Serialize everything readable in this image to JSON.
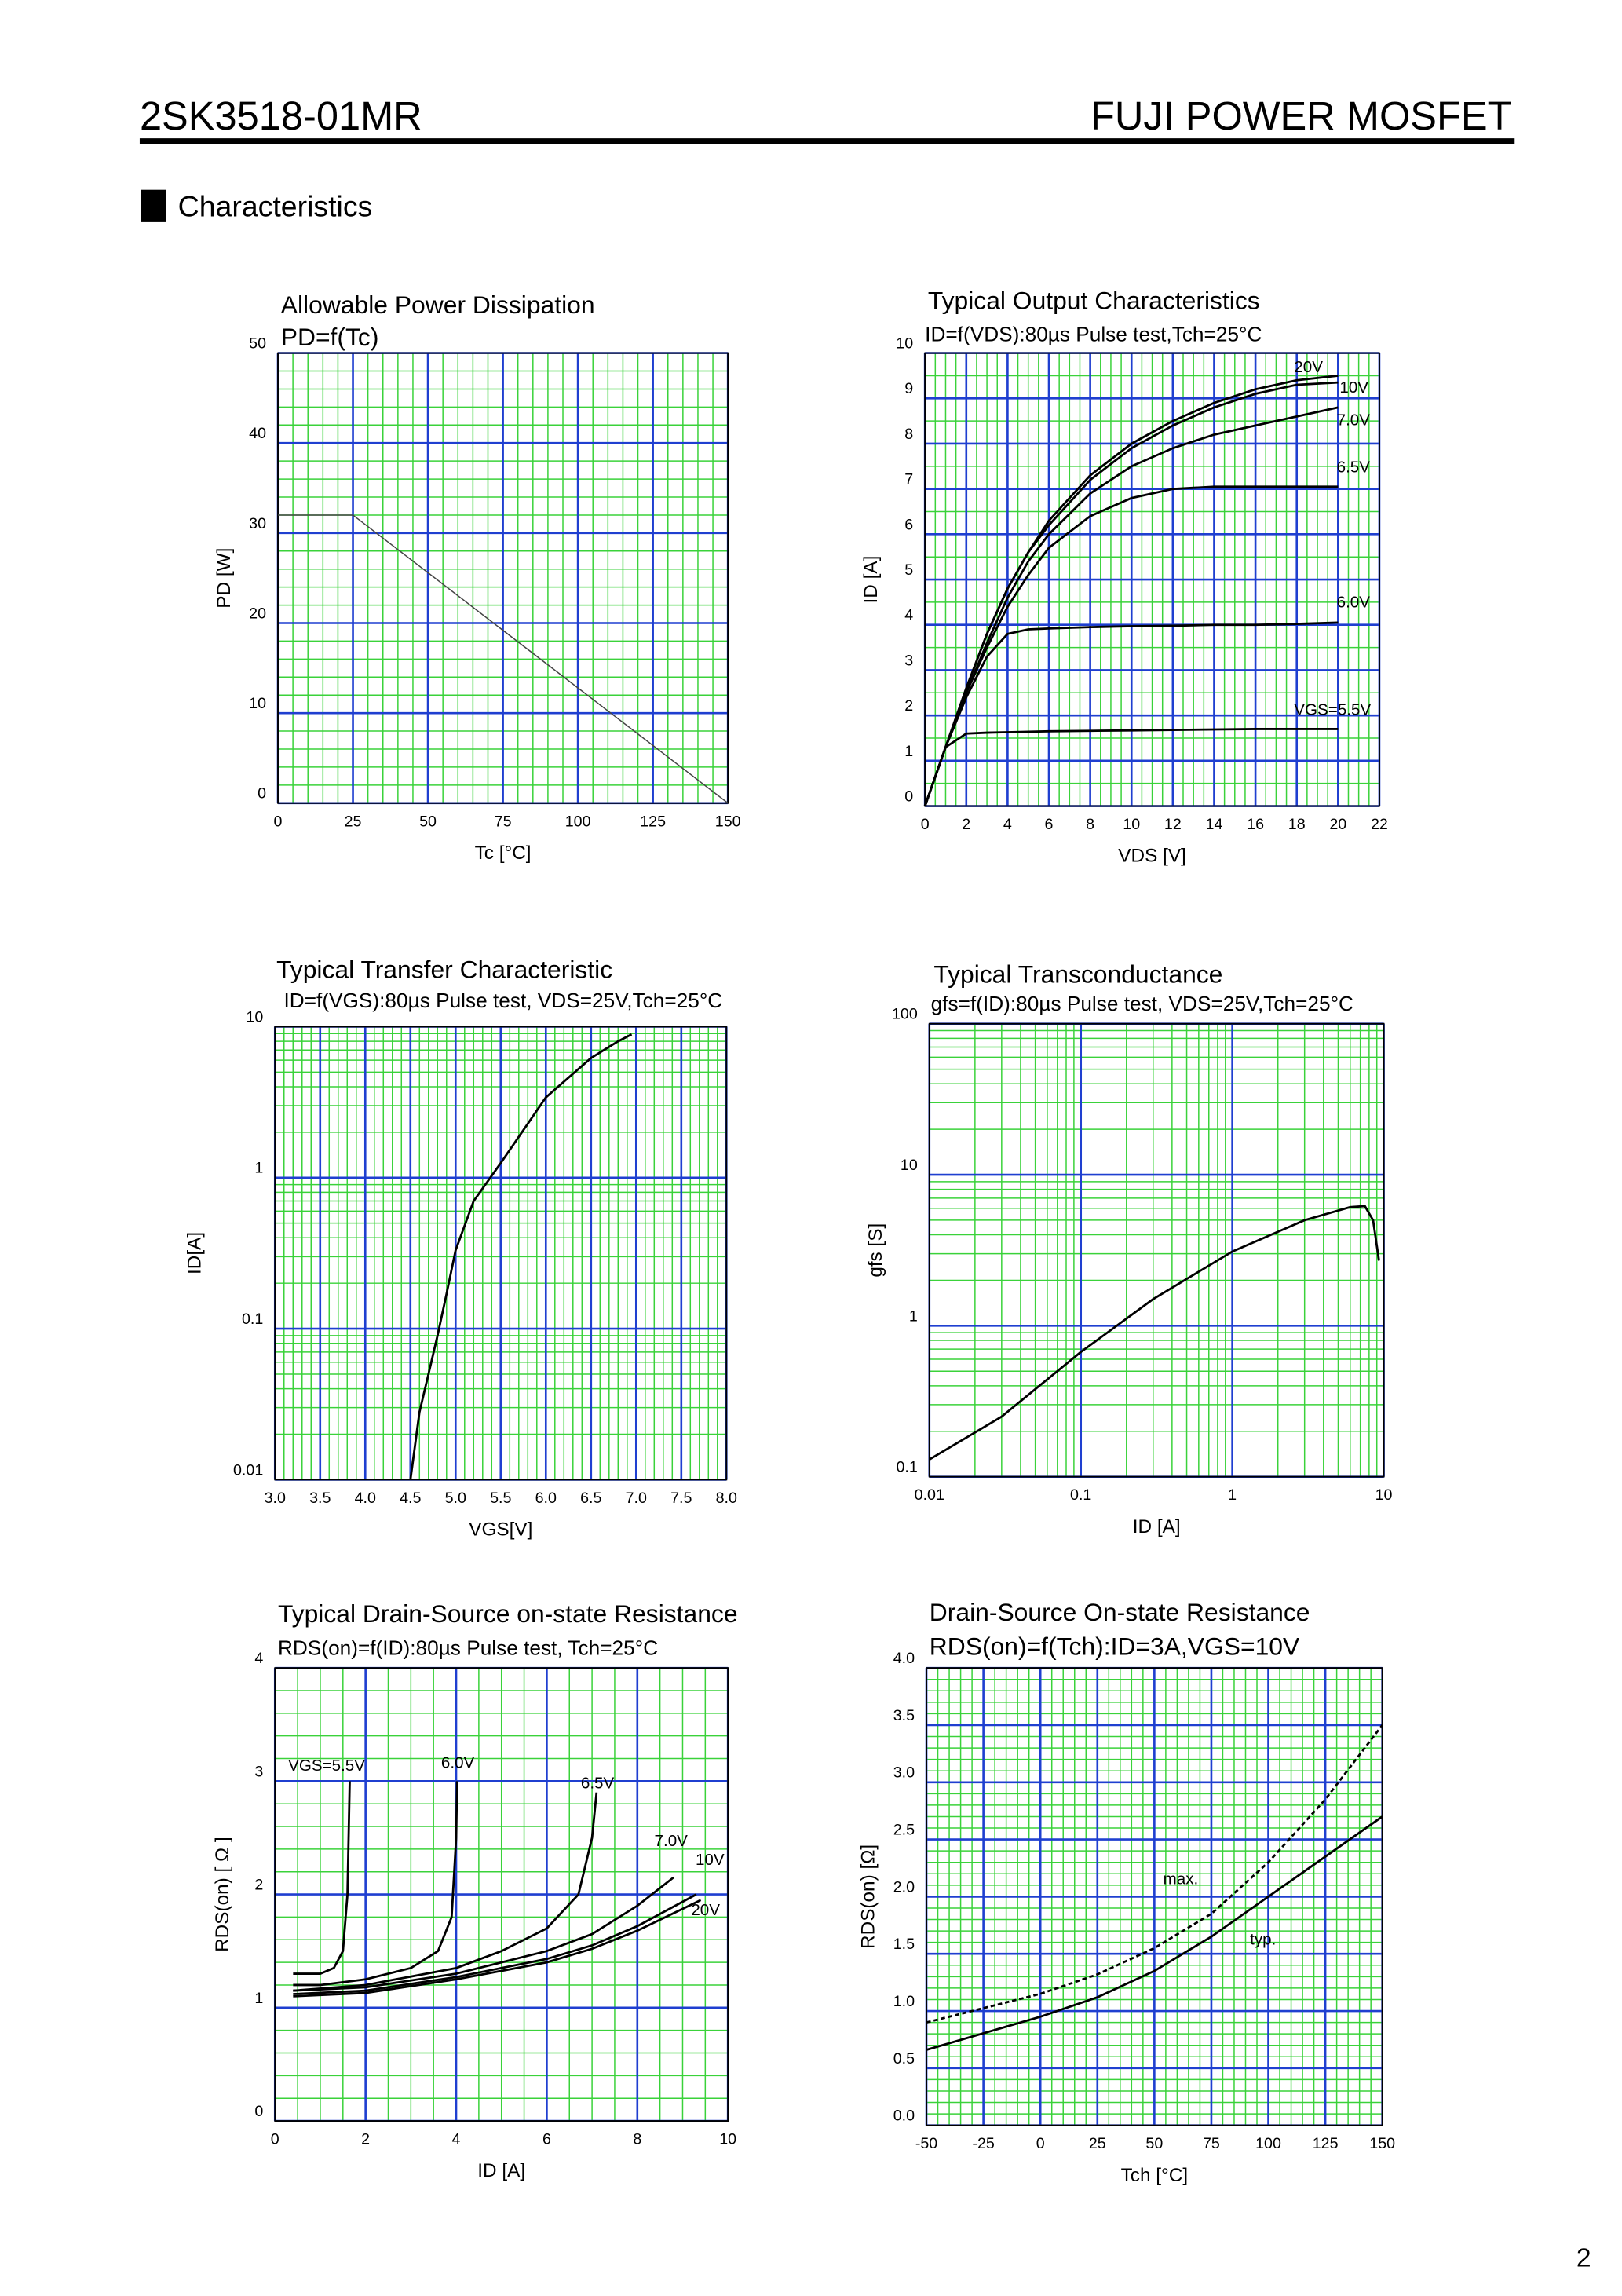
{
  "header": {
    "part_number": "2SK3518-01MR",
    "brand": "FUJI POWER MOSFET",
    "section": "Characteristics",
    "page_number": "2"
  },
  "chart_data": [
    {
      "type": "line",
      "title": "Allowable Power Dissipation",
      "subtitle": "PD=f(Tc)",
      "xlabel": "Tc [°C]",
      "ylabel": "PD [W]",
      "xlim": [
        0,
        150
      ],
      "ylim": [
        0,
        50
      ],
      "xticks": [
        0,
        25,
        50,
        75,
        100,
        125,
        150
      ],
      "yticks": [
        0,
        10,
        20,
        30,
        40,
        50
      ],
      "grid": true,
      "series": [
        {
          "color": "#444444",
          "x": [
            0,
            25,
            150
          ],
          "values": [
            32,
            32,
            0
          ]
        }
      ]
    },
    {
      "type": "line",
      "title": "Typical Output Characteristics",
      "subtitle": "ID=f(VDS):80µs Pulse test,Tch=25°C",
      "xlabel": "VDS [V]",
      "ylabel": "ID [A]",
      "xlim": [
        0,
        22
      ],
      "ylim": [
        0,
        10
      ],
      "xticks": [
        0,
        2,
        4,
        6,
        8,
        10,
        12,
        14,
        16,
        18,
        20,
        22
      ],
      "yticks": [
        0,
        1,
        2,
        3,
        4,
        5,
        6,
        7,
        8,
        9,
        10
      ],
      "grid": true,
      "x": [
        0,
        1,
        2,
        3,
        4,
        5,
        6,
        8,
        10,
        12,
        14,
        16,
        18,
        20
      ],
      "series": [
        {
          "name": "20V",
          "color": "#000000",
          "values": [
            0,
            1.3,
            2.6,
            3.8,
            4.8,
            5.6,
            6.3,
            7.3,
            8.0,
            8.5,
            8.9,
            9.2,
            9.4,
            9.5
          ]
        },
        {
          "name": "10V",
          "color": "#000000",
          "values": [
            0,
            1.3,
            2.6,
            3.8,
            4.8,
            5.6,
            6.2,
            7.2,
            7.9,
            8.4,
            8.8,
            9.1,
            9.3,
            9.35
          ]
        },
        {
          "name": "7.0V",
          "color": "#000000",
          "values": [
            0,
            1.3,
            2.5,
            3.6,
            4.6,
            5.4,
            6.0,
            6.9,
            7.5,
            7.9,
            8.2,
            8.4,
            8.6,
            8.8
          ]
        },
        {
          "name": "6.5V",
          "color": "#000000",
          "values": [
            0,
            1.3,
            2.5,
            3.5,
            4.4,
            5.1,
            5.7,
            6.4,
            6.8,
            7.0,
            7.05,
            7.05,
            7.05,
            7.05
          ]
        },
        {
          "name": "6.0V",
          "color": "#000000",
          "values": [
            0,
            1.3,
            2.4,
            3.3,
            3.8,
            3.9,
            3.92,
            3.95,
            3.97,
            3.98,
            4.0,
            4.0,
            4.02,
            4.05
          ]
        },
        {
          "name": "VGS=5.5V",
          "color": "#000000",
          "values": [
            0,
            1.3,
            1.6,
            1.62,
            1.63,
            1.64,
            1.65,
            1.66,
            1.67,
            1.68,
            1.69,
            1.7,
            1.7,
            1.7
          ]
        }
      ]
    },
    {
      "type": "line",
      "title": "Typical Transfer Characteristic",
      "subtitle": "ID=f(VGS):80µs Pulse test, VDS=25V,Tch=25°C",
      "xlabel": "VGS[V]",
      "ylabel": "ID[A]",
      "xlim": [
        3,
        8
      ],
      "ylim": [
        0.01,
        10
      ],
      "ylog": true,
      "xticks": [
        {
          "value": 3,
          "label": "3.0"
        },
        3.5,
        {
          "value": 4,
          "label": "4.0"
        },
        4.5,
        {
          "value": 5,
          "label": "5.0"
        },
        5.5,
        {
          "value": 6,
          "label": "6.0"
        },
        6.5,
        {
          "value": 7,
          "label": "7.0"
        },
        7.5,
        {
          "value": 8,
          "label": "8.0"
        }
      ],
      "yticks": [
        0.01,
        0.1,
        1,
        10
      ],
      "grid": true,
      "series": [
        {
          "color": "#000000",
          "x": [
            4.5,
            4.6,
            4.7,
            4.8,
            4.9,
            5.0,
            5.2,
            5.5,
            6.0,
            6.5,
            6.8,
            6.95
          ],
          "values": [
            0.01,
            0.028,
            0.05,
            0.09,
            0.17,
            0.33,
            0.7,
            1.25,
            3.4,
            6.2,
            8.0,
            8.9
          ]
        }
      ]
    },
    {
      "type": "line",
      "title": "Typical Transconductance",
      "subtitle": "gfs=f(ID):80µs Pulse test, VDS=25V,Tch=25°C",
      "xlabel": "ID [A]",
      "ylabel": "gfs [S]",
      "xlim": [
        0.01,
        10
      ],
      "ylim": [
        0.1,
        100
      ],
      "xlog": true,
      "ylog": true,
      "xticks": [
        0.01,
        0.1,
        1,
        10
      ],
      "yticks": [
        0.1,
        1,
        10,
        100
      ],
      "grid": true,
      "series": [
        {
          "color": "#000000",
          "x": [
            0.01,
            0.03,
            0.1,
            0.3,
            1,
            3,
            6,
            7.5,
            8.5,
            9.3
          ],
          "values": [
            0.13,
            0.25,
            0.67,
            1.5,
            3.1,
            5.0,
            6.1,
            6.2,
            5.0,
            2.7
          ]
        }
      ]
    },
    {
      "type": "line",
      "title": "Typical Drain-Source on-state Resistance",
      "subtitle": "RDS(on)=f(ID):80µs Pulse test, Tch=25°C",
      "xlabel": "ID [A]",
      "ylabel": "RDS(on) [ Ω ]",
      "xlim": [
        0,
        10
      ],
      "ylim": [
        0,
        4
      ],
      "xticks": [
        0,
        2,
        4,
        6,
        8,
        10
      ],
      "yticks": [
        0,
        1,
        2,
        3,
        4
      ],
      "grid": true,
      "series": [
        {
          "name": "VGS=5.5V",
          "color": "#000000",
          "x": [
            0.4,
            1.0,
            1.3,
            1.5,
            1.6,
            1.65
          ],
          "values": [
            1.3,
            1.3,
            1.35,
            1.5,
            2.0,
            3.0
          ]
        },
        {
          "name": "6.0V",
          "color": "#000000",
          "x": [
            0.4,
            1,
            2,
            3,
            3.6,
            3.9,
            4.0,
            4.02
          ],
          "values": [
            1.2,
            1.2,
            1.25,
            1.35,
            1.5,
            1.8,
            2.5,
            3.0
          ]
        },
        {
          "name": "6.5V",
          "color": "#000000",
          "x": [
            0.4,
            2,
            4,
            5,
            6,
            6.7,
            7.0,
            7.1
          ],
          "values": [
            1.15,
            1.2,
            1.35,
            1.5,
            1.7,
            2.0,
            2.5,
            2.9
          ]
        },
        {
          "name": "7.0V",
          "color": "#000000",
          "x": [
            0.4,
            2,
            4,
            6,
            7,
            8,
            8.8
          ],
          "values": [
            1.15,
            1.18,
            1.3,
            1.5,
            1.65,
            1.9,
            2.15
          ]
        },
        {
          "name": "10V",
          "color": "#000000",
          "x": [
            0.4,
            2,
            4,
            6,
            7,
            8,
            9.3
          ],
          "values": [
            1.12,
            1.15,
            1.27,
            1.43,
            1.55,
            1.72,
            2.0
          ]
        },
        {
          "name": "20V",
          "color": "#000000",
          "x": [
            0.4,
            2,
            4,
            6,
            7,
            8,
            9.4
          ],
          "values": [
            1.1,
            1.13,
            1.25,
            1.4,
            1.52,
            1.68,
            1.95
          ]
        }
      ]
    },
    {
      "type": "line",
      "title": "Drain-Source On-state Resistance",
      "subtitle": "RDS(on)=f(Tch):ID=3A,VGS=10V",
      "xlabel": "Tch [°C]",
      "ylabel": "RDS(on) [Ω]",
      "xlim": [
        -50,
        150
      ],
      "ylim": [
        0,
        4
      ],
      "xticks": [
        -50,
        -25,
        0,
        25,
        50,
        75,
        100,
        125,
        150
      ],
      "yticks": [
        {
          "value": 0,
          "label": "0.0"
        },
        0.5,
        {
          "value": 1,
          "label": "1.0"
        },
        1.5,
        {
          "value": 2,
          "label": "2.0"
        },
        2.5,
        {
          "value": 3,
          "label": "3.0"
        },
        3.5,
        {
          "value": 4,
          "label": "4.0"
        }
      ],
      "grid": true,
      "series": [
        {
          "name": "max.",
          "color": "#000000",
          "dashed": true,
          "x": [
            -50,
            0,
            25,
            50,
            75,
            100,
            125,
            150
          ],
          "values": [
            0.9,
            1.15,
            1.32,
            1.55,
            1.85,
            2.3,
            2.85,
            3.5
          ]
        },
        {
          "name": "typ.",
          "color": "#000000",
          "x": [
            -50,
            0,
            25,
            50,
            75,
            100,
            125,
            150
          ],
          "values": [
            0.66,
            0.95,
            1.12,
            1.35,
            1.65,
            2.0,
            2.35,
            2.7
          ]
        }
      ]
    }
  ]
}
